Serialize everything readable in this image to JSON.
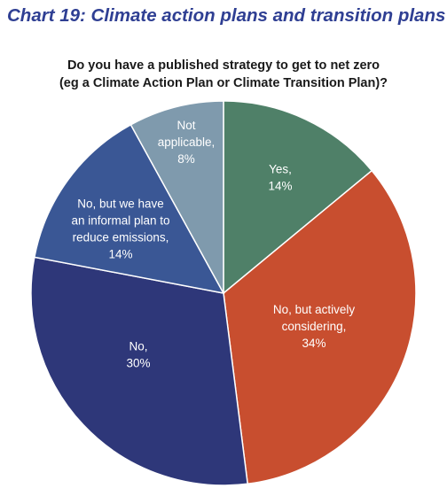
{
  "chart_data": {
    "type": "pie",
    "title": "Chart 19: Climate action plans and transition plans",
    "subtitle": [
      "Do you have a published strategy to get to net zero",
      "(eg a Climate Action Plan or Climate Transition Plan)?"
    ],
    "slices": [
      {
        "label": [
          "Yes,",
          "14%"
        ],
        "name": "Yes",
        "value": 14,
        "color": "#4f8068"
      },
      {
        "label": [
          "No, but actively",
          "considering,",
          "34%"
        ],
        "name": "No, but actively considering",
        "value": 34,
        "color": "#c84e2f"
      },
      {
        "label": [
          "No,",
          "30%"
        ],
        "name": "No",
        "value": 30,
        "color": "#2e3779"
      },
      {
        "label": [
          "No, but we have",
          "an informal plan to",
          "reduce emissions,",
          "14%"
        ],
        "name": "No, but we have an informal plan to reduce emissions",
        "value": 14,
        "color": "#3a5795"
      },
      {
        "label": [
          "Not",
          "applicable,",
          "8%"
        ],
        "name": "Not applicable",
        "value": 8,
        "color": "#7f9aad"
      }
    ],
    "start_angle_deg": 0,
    "direction": "clockwise"
  }
}
